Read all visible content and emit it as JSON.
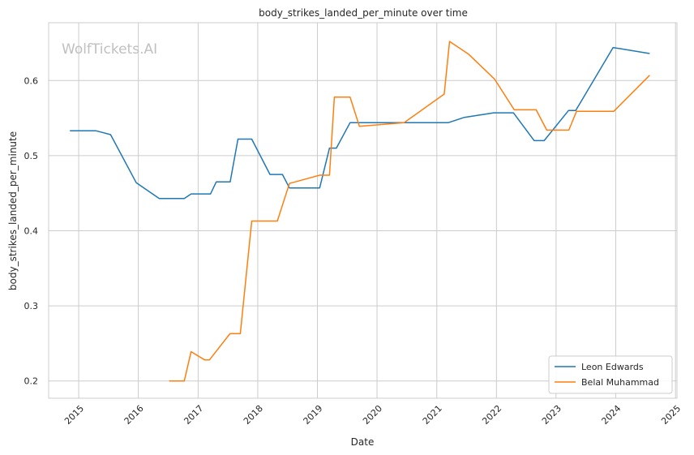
{
  "chart_data": {
    "type": "line",
    "title": "body_strikes_landed_per_minute over time",
    "xlabel": "Date",
    "ylabel": "body_strikes_landed_per_minute",
    "watermark": "WolfTickets.AI",
    "x_ticks": [
      "2015",
      "2016",
      "2017",
      "2018",
      "2019",
      "2020",
      "2021",
      "2022",
      "2023",
      "2024",
      "2025"
    ],
    "y_ticks": [
      "0.2",
      "0.3",
      "0.4",
      "0.5",
      "0.6"
    ],
    "xlim": [
      "2014-07-01",
      "2025-01-10"
    ],
    "ylim": [
      0.177,
      0.677
    ],
    "grid": true,
    "legend_position": "lower-right",
    "series": [
      {
        "name": "Leon Edwards",
        "color": "#1f77b4",
        "points": [
          [
            "2014-11-08",
            0.533
          ],
          [
            "2015-04-18",
            0.533
          ],
          [
            "2015-07-15",
            0.528
          ],
          [
            "2015-12-19",
            0.464
          ],
          [
            "2016-05-08",
            0.443
          ],
          [
            "2016-10-08",
            0.443
          ],
          [
            "2016-11-19",
            0.449
          ],
          [
            "2017-03-18",
            0.449
          ],
          [
            "2017-04-22",
            0.465
          ],
          [
            "2017-07-16",
            0.465
          ],
          [
            "2017-09-02",
            0.522
          ],
          [
            "2017-11-25",
            0.522
          ],
          [
            "2018-03-17",
            0.475
          ],
          [
            "2018-06-01",
            0.475
          ],
          [
            "2018-07-14",
            0.457
          ],
          [
            "2019-01-15",
            0.457
          ],
          [
            "2019-03-16",
            0.51
          ],
          [
            "2019-04-27",
            0.51
          ],
          [
            "2019-07-20",
            0.544
          ],
          [
            "2020-04-01",
            0.544
          ],
          [
            "2021-03-13",
            0.544
          ],
          [
            "2021-06-19",
            0.551
          ],
          [
            "2021-12-15",
            0.557
          ],
          [
            "2022-04-15",
            0.557
          ],
          [
            "2022-08-20",
            0.52
          ],
          [
            "2022-10-20",
            0.52
          ],
          [
            "2023-03-18",
            0.56
          ],
          [
            "2023-05-01",
            0.56
          ],
          [
            "2023-12-16",
            0.644
          ],
          [
            "2024-07-27",
            0.636
          ]
        ]
      },
      {
        "name": "Belal Muhammad",
        "color": "#ff7f0e",
        "points": [
          [
            "2016-07-08",
            0.2
          ],
          [
            "2016-10-08",
            0.2
          ],
          [
            "2016-11-19",
            0.239
          ],
          [
            "2017-02-11",
            0.228
          ],
          [
            "2017-03-11",
            0.228
          ],
          [
            "2017-07-15",
            0.263
          ],
          [
            "2017-09-16",
            0.263
          ],
          [
            "2017-11-25",
            0.413
          ],
          [
            "2018-05-01",
            0.413
          ],
          [
            "2018-07-14",
            0.463
          ],
          [
            "2019-01-15",
            0.474
          ],
          [
            "2019-03-16",
            0.474
          ],
          [
            "2019-04-15",
            0.578
          ],
          [
            "2019-07-20",
            0.578
          ],
          [
            "2019-09-15",
            0.539
          ],
          [
            "2020-06-15",
            0.544
          ],
          [
            "2021-02-15",
            0.582
          ],
          [
            "2021-03-20",
            0.652
          ],
          [
            "2021-07-15",
            0.635
          ],
          [
            "2021-12-20",
            0.602
          ],
          [
            "2022-04-20",
            0.561
          ],
          [
            "2022-09-01",
            0.561
          ],
          [
            "2022-11-05",
            0.534
          ],
          [
            "2023-03-20",
            0.534
          ],
          [
            "2023-05-06",
            0.559
          ],
          [
            "2023-12-20",
            0.559
          ],
          [
            "2024-07-27",
            0.607
          ]
        ]
      }
    ]
  }
}
